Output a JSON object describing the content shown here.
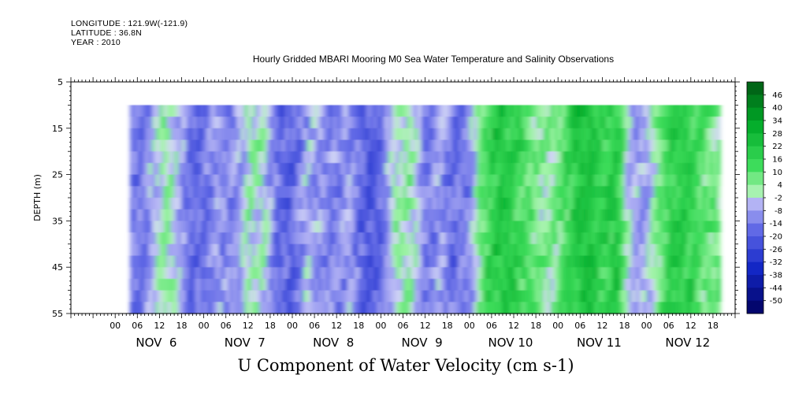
{
  "header": {
    "longitude": "LONGITUDE : 121.9W(-121.9)",
    "latitude": "LATITUDE : 36.8N",
    "year": "YEAR : 2010"
  },
  "chart_data": {
    "type": "heatmap",
    "title": "Hourly Gridded MBARI Mooring M0 Sea Water Temperature and Salinity Observations",
    "bottom_title": "U Component of Water Velocity (cm s-1)",
    "ylabel": "DEPTH (m)",
    "xlabel": "",
    "y_range": [
      5,
      55
    ],
    "y_inverted": true,
    "y_ticks": [
      5,
      15,
      25,
      35,
      45,
      55
    ],
    "data_depth_range": [
      10,
      55
    ],
    "x_hour_ticks": [
      "00",
      "06",
      "12",
      "18",
      "00",
      "06",
      "12",
      "18",
      "00",
      "06",
      "12",
      "18",
      "00",
      "06",
      "12",
      "18",
      "00",
      "06",
      "12",
      "18",
      "00",
      "06",
      "12",
      "18",
      "00",
      "06",
      "12",
      "18"
    ],
    "x_day_labels": [
      "NOV  6",
      "NOV  7",
      "NOV  8",
      "NOV  9",
      "NOV 10",
      "NOV 11",
      "NOV 12"
    ],
    "data_start_hour": 4,
    "data_end_hour": 164,
    "colorbar_labels": [
      "46",
      "40",
      "34",
      "28",
      "22",
      "16",
      "10",
      "4",
      "-2",
      "-8",
      "-14",
      "-20",
      "-26",
      "-32",
      "-38",
      "-44",
      "-50"
    ],
    "colorbar_range": [
      -50,
      50
    ],
    "colors": {
      "negative": "#6d72e4",
      "positive": "#2bd64a",
      "light_negative": "#b6b6f4",
      "light_positive": "#9cf2a8"
    },
    "column_profile": [
      {
        "hour": 4,
        "value": -10
      },
      {
        "hour": 8,
        "value": -12
      },
      {
        "hour": 12,
        "value": 4
      },
      {
        "hour": 16,
        "value": 2
      },
      {
        "hour": 20,
        "value": -14
      },
      {
        "hour": 24,
        "value": -12
      },
      {
        "hour": 28,
        "value": -6
      },
      {
        "hour": 32,
        "value": -10
      },
      {
        "hour": 36,
        "value": 3
      },
      {
        "hour": 40,
        "value": 2
      },
      {
        "hour": 44,
        "value": -14
      },
      {
        "hour": 48,
        "value": -16
      },
      {
        "hour": 52,
        "value": -4
      },
      {
        "hour": 56,
        "value": -8
      },
      {
        "hour": 60,
        "value": -10
      },
      {
        "hour": 64,
        "value": -6
      },
      {
        "hour": 68,
        "value": -18
      },
      {
        "hour": 72,
        "value": -14
      },
      {
        "hour": 76,
        "value": 3
      },
      {
        "hour": 80,
        "value": 6
      },
      {
        "hour": 84,
        "value": -12
      },
      {
        "hour": 88,
        "value": -6
      },
      {
        "hour": 92,
        "value": -14
      },
      {
        "hour": 96,
        "value": -8
      },
      {
        "hour": 100,
        "value": 14
      },
      {
        "hour": 104,
        "value": 22
      },
      {
        "hour": 108,
        "value": 18
      },
      {
        "hour": 112,
        "value": 12
      },
      {
        "hour": 116,
        "value": 4
      },
      {
        "hour": 120,
        "value": 8
      },
      {
        "hour": 124,
        "value": 20
      },
      {
        "hour": 128,
        "value": 24
      },
      {
        "hour": 132,
        "value": 16
      },
      {
        "hour": 136,
        "value": 22
      },
      {
        "hour": 140,
        "value": -6
      },
      {
        "hour": 144,
        "value": -4
      },
      {
        "hour": 148,
        "value": 10
      },
      {
        "hour": 152,
        "value": 20
      },
      {
        "hour": 156,
        "value": 18
      },
      {
        "hour": 160,
        "value": 10
      },
      {
        "hour": 164,
        "value": 8
      }
    ]
  }
}
